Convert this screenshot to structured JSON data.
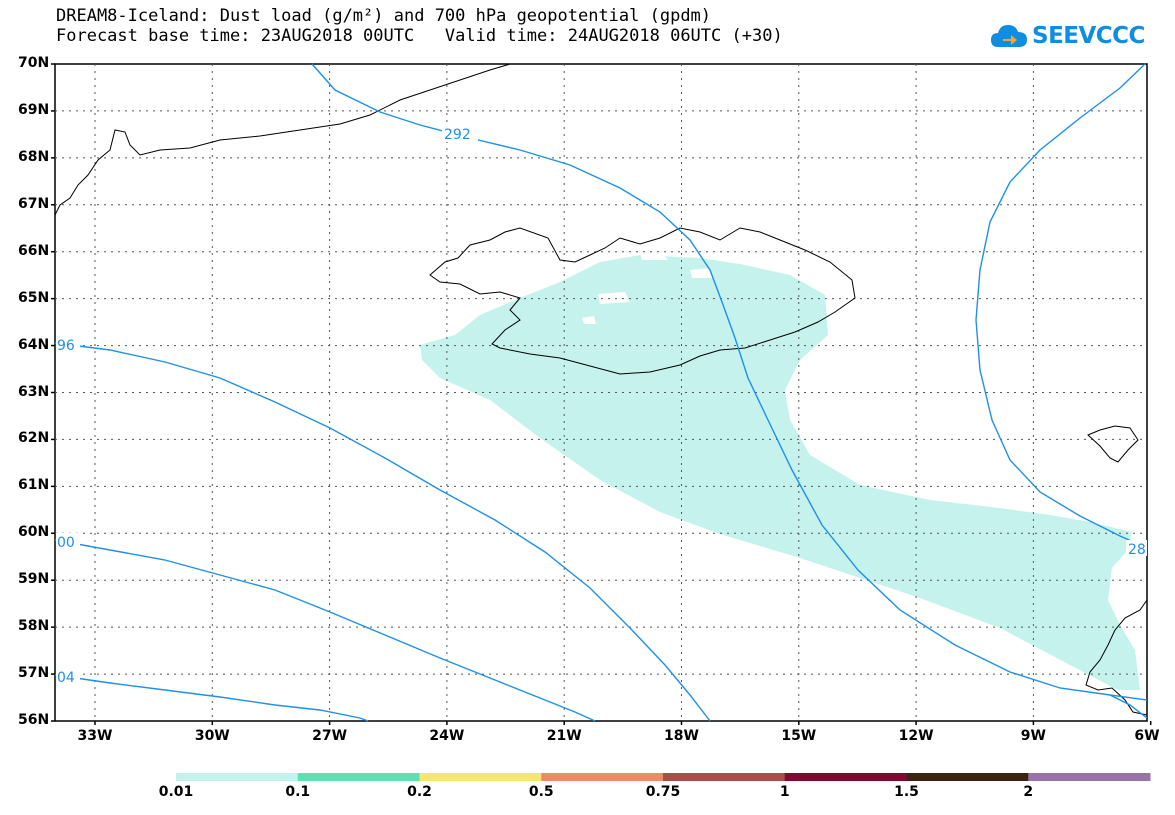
{
  "header": {
    "title_line1": "DREAM8-Iceland: Dust load (g/m²) and 700 hPa geopotential (gpdm)",
    "title_line2": "Forecast base time: 23AUG2018 00UTC   Valid time: 24AUG2018 06UTC (+30)"
  },
  "brand": {
    "name": "SEEVCCC",
    "icon": "cloud-logo-icon",
    "color": "#0f8de0"
  },
  "map": {
    "lat_labels": [
      "70N",
      "69N",
      "68N",
      "67N",
      "66N",
      "65N",
      "64N",
      "63N",
      "62N",
      "61N",
      "60N",
      "59N",
      "58N",
      "57N",
      "56N"
    ],
    "lon_labels": [
      "33W",
      "30W",
      "27W",
      "24W",
      "21W",
      "18W",
      "15W",
      "12W",
      "9W",
      "6W"
    ],
    "contour_color": "#1e90e8",
    "dust_fill_color": "#c5f2ec",
    "contour_labels": [
      "292",
      "96",
      "00",
      "04",
      "28"
    ]
  },
  "colorbar": {
    "colors": [
      "#c5f2ec",
      "#5ee0b0",
      "#f5e66e",
      "#eb8a66",
      "#a5514a",
      "#7e0a2e",
      "#3a2412",
      "#9872a8"
    ],
    "labels": [
      "0.01",
      "0.1",
      "0.2",
      "0.5",
      "0.75",
      "1",
      "1.5",
      "2"
    ]
  }
}
